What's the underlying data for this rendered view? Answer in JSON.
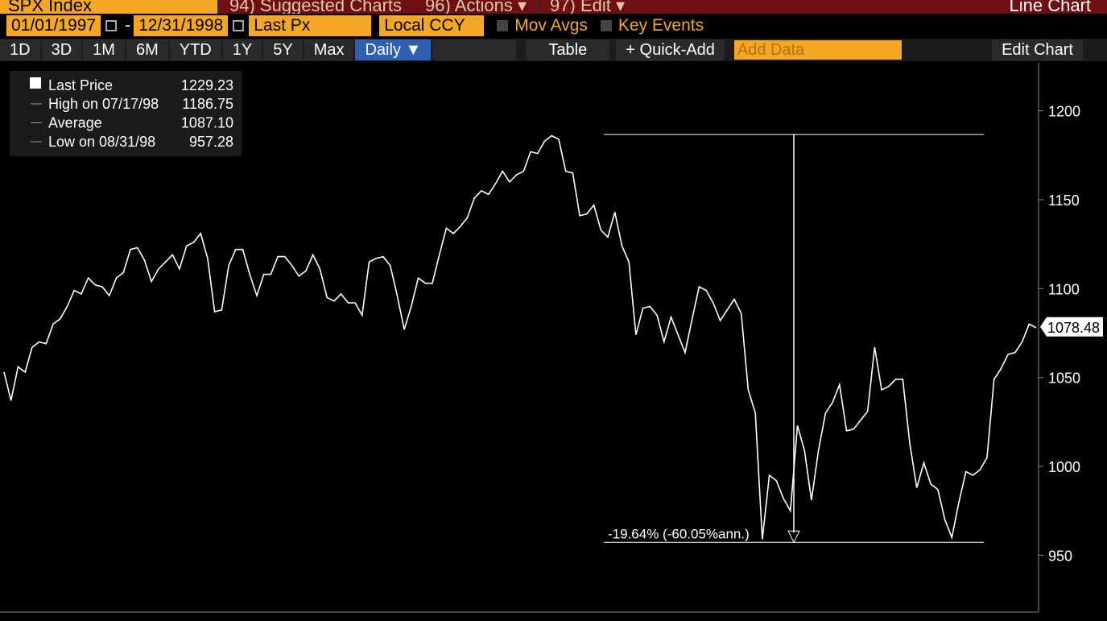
{
  "header": {
    "ticker": "SPX Index",
    "tabs": [
      "94) Suggested Charts",
      "96) Actions ▾",
      "97) Edit ▾"
    ],
    "view": "Line Chart"
  },
  "toolbar": {
    "start_date": "01/01/1997",
    "end_date": "12/31/1998",
    "field": "Last Px",
    "currency": "Local CCY",
    "toggles": [
      "Mov Avgs",
      "Key Events"
    ],
    "periods": [
      "1D",
      "3D",
      "1M",
      "6M",
      "YTD",
      "1Y",
      "5Y",
      "Max"
    ],
    "frequency": "Daily ▼",
    "table": "Table",
    "quick_add": "+ Quick-Add",
    "add_data": "Add Data",
    "edit_chart": "Edit Chart"
  },
  "chart_data": {
    "type": "line",
    "series": [
      {
        "name": "Last Price",
        "color": "#ffffff",
        "values": [
          1053,
          1037,
          1056,
          1053,
          1067,
          1070,
          1069,
          1080,
          1083,
          1090,
          1099,
          1097,
          1106,
          1102,
          1101,
          1096,
          1106,
          1109,
          1122,
          1123,
          1116,
          1104,
          1111,
          1115,
          1119,
          1111,
          1124,
          1126,
          1131,
          1117,
          1087,
          1088,
          1113,
          1122,
          1122,
          1108,
          1096,
          1108,
          1108,
          1118,
          1118,
          1113,
          1107,
          1110,
          1119,
          1111,
          1095,
          1093,
          1097,
          1092,
          1092,
          1085,
          1115,
          1117,
          1118,
          1113,
          1096,
          1077,
          1090,
          1106,
          1103,
          1103,
          1119,
          1134,
          1131,
          1135,
          1140,
          1151,
          1155,
          1153,
          1159,
          1166,
          1160,
          1164,
          1166,
          1177,
          1176,
          1183,
          1186,
          1184,
          1166,
          1165,
          1141,
          1142,
          1147,
          1133,
          1129,
          1143,
          1124,
          1115,
          1074,
          1089,
          1090,
          1085,
          1070,
          1084,
          1074,
          1064,
          1083,
          1101,
          1099,
          1092,
          1082,
          1088,
          1094,
          1086,
          1043,
          1030,
          959,
          995,
          992,
          982,
          975,
          1023,
          1009,
          981,
          1009,
          1030,
          1036,
          1046,
          1020,
          1021,
          1026,
          1031,
          1067,
          1043,
          1045,
          1049,
          1049,
          1013,
          988,
          1002,
          990,
          987,
          970,
          960,
          980,
          997,
          995,
          998,
          1005,
          1049,
          1055,
          1063,
          1064,
          1070,
          1080,
          1078
        ]
      }
    ],
    "ylim": [
      918,
      1227
    ],
    "yticks": [
      950,
      1000,
      1050,
      1100,
      1150,
      1200
    ],
    "last_price": "1229.23",
    "stats": [
      {
        "label": "High on 07/17/98",
        "value": "1186.75"
      },
      {
        "label": "Average",
        "value": "1087.10"
      },
      {
        "label": "Low on 08/31/98",
        "value": "957.28"
      }
    ],
    "last_value_label": "1078.48",
    "annotation": "-19.64% (-60.05%ann.)"
  }
}
